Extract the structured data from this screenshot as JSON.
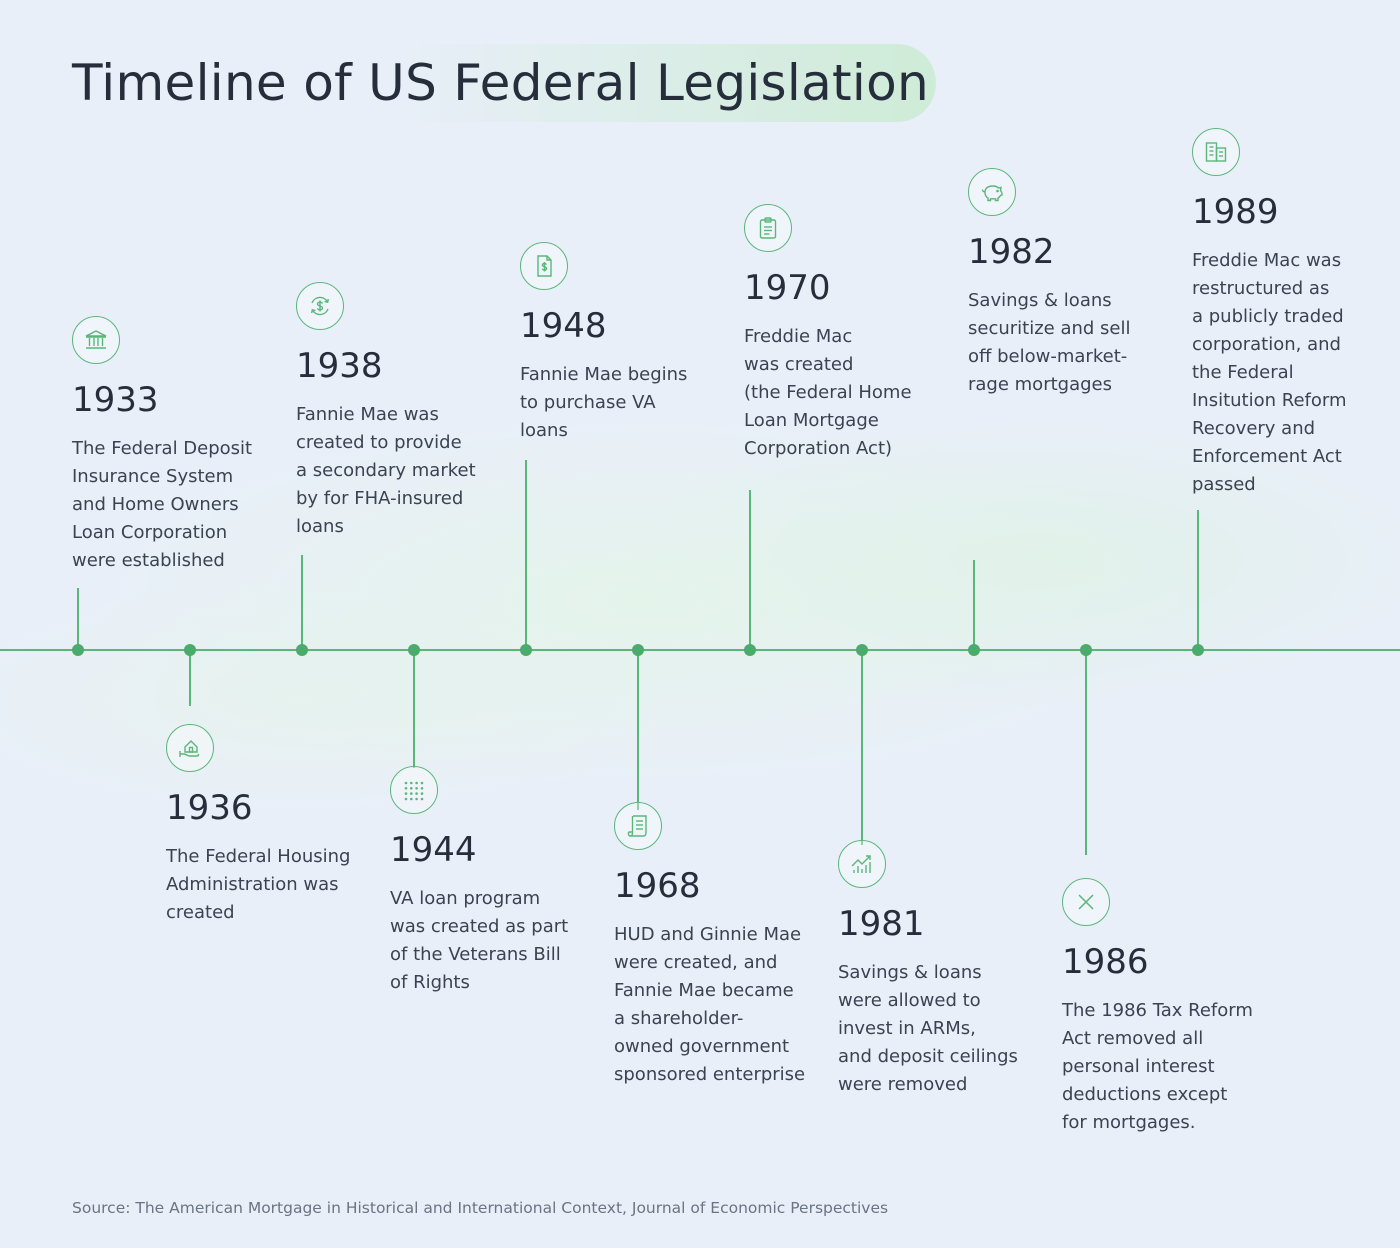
{
  "title": "Timeline of US Federal Legislation",
  "accent_color": "#5ab779",
  "events": [
    {
      "year": "1933",
      "icon": "bank-icon",
      "text": "The Federal Deposit\nInsurance System\nand Home Owners\nLoan Corporation\nwere established"
    },
    {
      "year": "1936",
      "icon": "house-in-hand-icon",
      "text": "The Federal Housing\nAdministration was\ncreated"
    },
    {
      "year": "1938",
      "icon": "dollar-cycle-icon",
      "text": "Fannie Mae was\ncreated to provide\na secondary market\nby for FHA-insured\nloans"
    },
    {
      "year": "1944",
      "icon": "dot-grid-icon",
      "text": "VA loan program\nwas created as part\nof the Veterans Bill\nof Rights"
    },
    {
      "year": "1948",
      "icon": "dollar-document-icon",
      "text": "Fannie Mae begins\nto purchase VA\nloans"
    },
    {
      "year": "1968",
      "icon": "receipt-icon",
      "text": "HUD and Ginnie Mae\nwere created, and\nFannie Mae became\na shareholder-\nowned government\nsponsored enterprise"
    },
    {
      "year": "1970",
      "icon": "clipboard-icon",
      "text": "Freddie Mac\nwas created\n(the Federal Home\nLoan Mortgage\nCorporation Act)"
    },
    {
      "year": "1981",
      "icon": "growth-chart-icon",
      "text": "Savings & loans\nwere allowed to\ninvest in ARMs,\nand deposit ceilings\nwere removed"
    },
    {
      "year": "1982",
      "icon": "piggy-bank-icon",
      "text": "Savings & loans\nsecuritize and sell\noff below-market-\nrage mortgages"
    },
    {
      "year": "1986",
      "icon": "x-mark-icon",
      "text": "The 1986 Tax Reform\nAct removed all\npersonal interest\ndeductions except\nfor mortgages."
    },
    {
      "year": "1989",
      "icon": "building-icon",
      "text": "Freddie Mac was\nrestructured as\na publicly traded\ncorporation, and\nthe Federal\nInsitution Reform\nRecovery and\nEnforcement Act\npassed"
    }
  ],
  "source": "Source: The American Mortgage in Historical and International Context, Journal of Economic Perspectives"
}
